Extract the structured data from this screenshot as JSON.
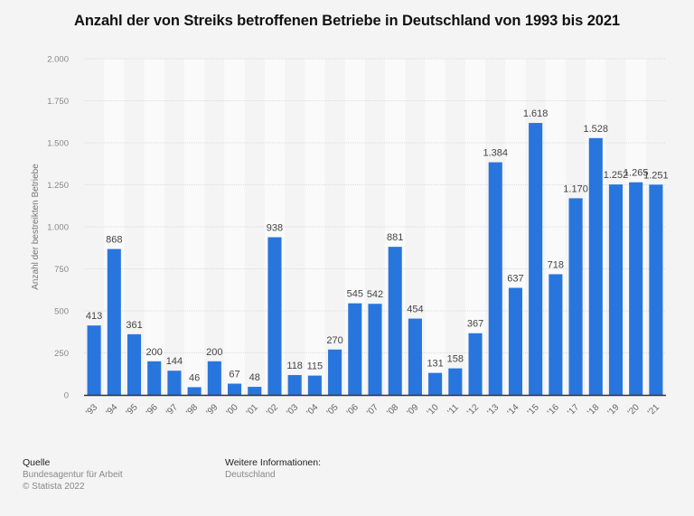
{
  "chart_data": {
    "type": "bar",
    "title": "Anzahl der von Streiks betroffenen Betriebe in Deutschland von 1993 bis 2021",
    "xlabel": "",
    "ylabel": "Anzahl der bestreikten Betriebe",
    "ylim": [
      0,
      2000
    ],
    "yticks": [
      0,
      250,
      500,
      750,
      1000,
      1250,
      1500,
      1750,
      2000
    ],
    "ytick_labels": [
      "0",
      "250",
      "500",
      "750",
      "1.000",
      "1.250",
      "1.500",
      "1.750",
      "2.000"
    ],
    "grid": true,
    "legend": "none",
    "categories": [
      "'93",
      "'94",
      "'95",
      "'96",
      "'97",
      "'98",
      "'99",
      "'00",
      "'01",
      "'02",
      "'03",
      "'04",
      "'05",
      "'06",
      "'07",
      "'08",
      "'09",
      "'10",
      "'11",
      "'12",
      "'13",
      "'14",
      "'15",
      "'16",
      "'17",
      "'18",
      "'19",
      "'20",
      "'21"
    ],
    "values": [
      413,
      868,
      361,
      200,
      144,
      46,
      200,
      67,
      48,
      938,
      118,
      115,
      270,
      545,
      542,
      881,
      454,
      131,
      158,
      367,
      1384,
      637,
      1618,
      718,
      1170,
      1528,
      1252,
      1265,
      1251
    ],
    "value_labels": [
      "413",
      "868",
      "361",
      "200",
      "144",
      "46",
      "200",
      "67",
      "48",
      "938",
      "118",
      "115",
      "270",
      "545",
      "542",
      "881",
      "454",
      "131",
      "158",
      "367",
      "1.384",
      "637",
      "1.618",
      "718",
      "1.170",
      "1.528",
      "1.252",
      "1.265",
      "1.251"
    ],
    "bar_color": "#2876dd"
  },
  "footer": {
    "source_heading": "Quelle",
    "source_name": "Bundesagentur für Arbeit",
    "copyright": "© Statista 2022",
    "info_heading": "Weitere Informationen:",
    "info_value": "Deutschland"
  }
}
